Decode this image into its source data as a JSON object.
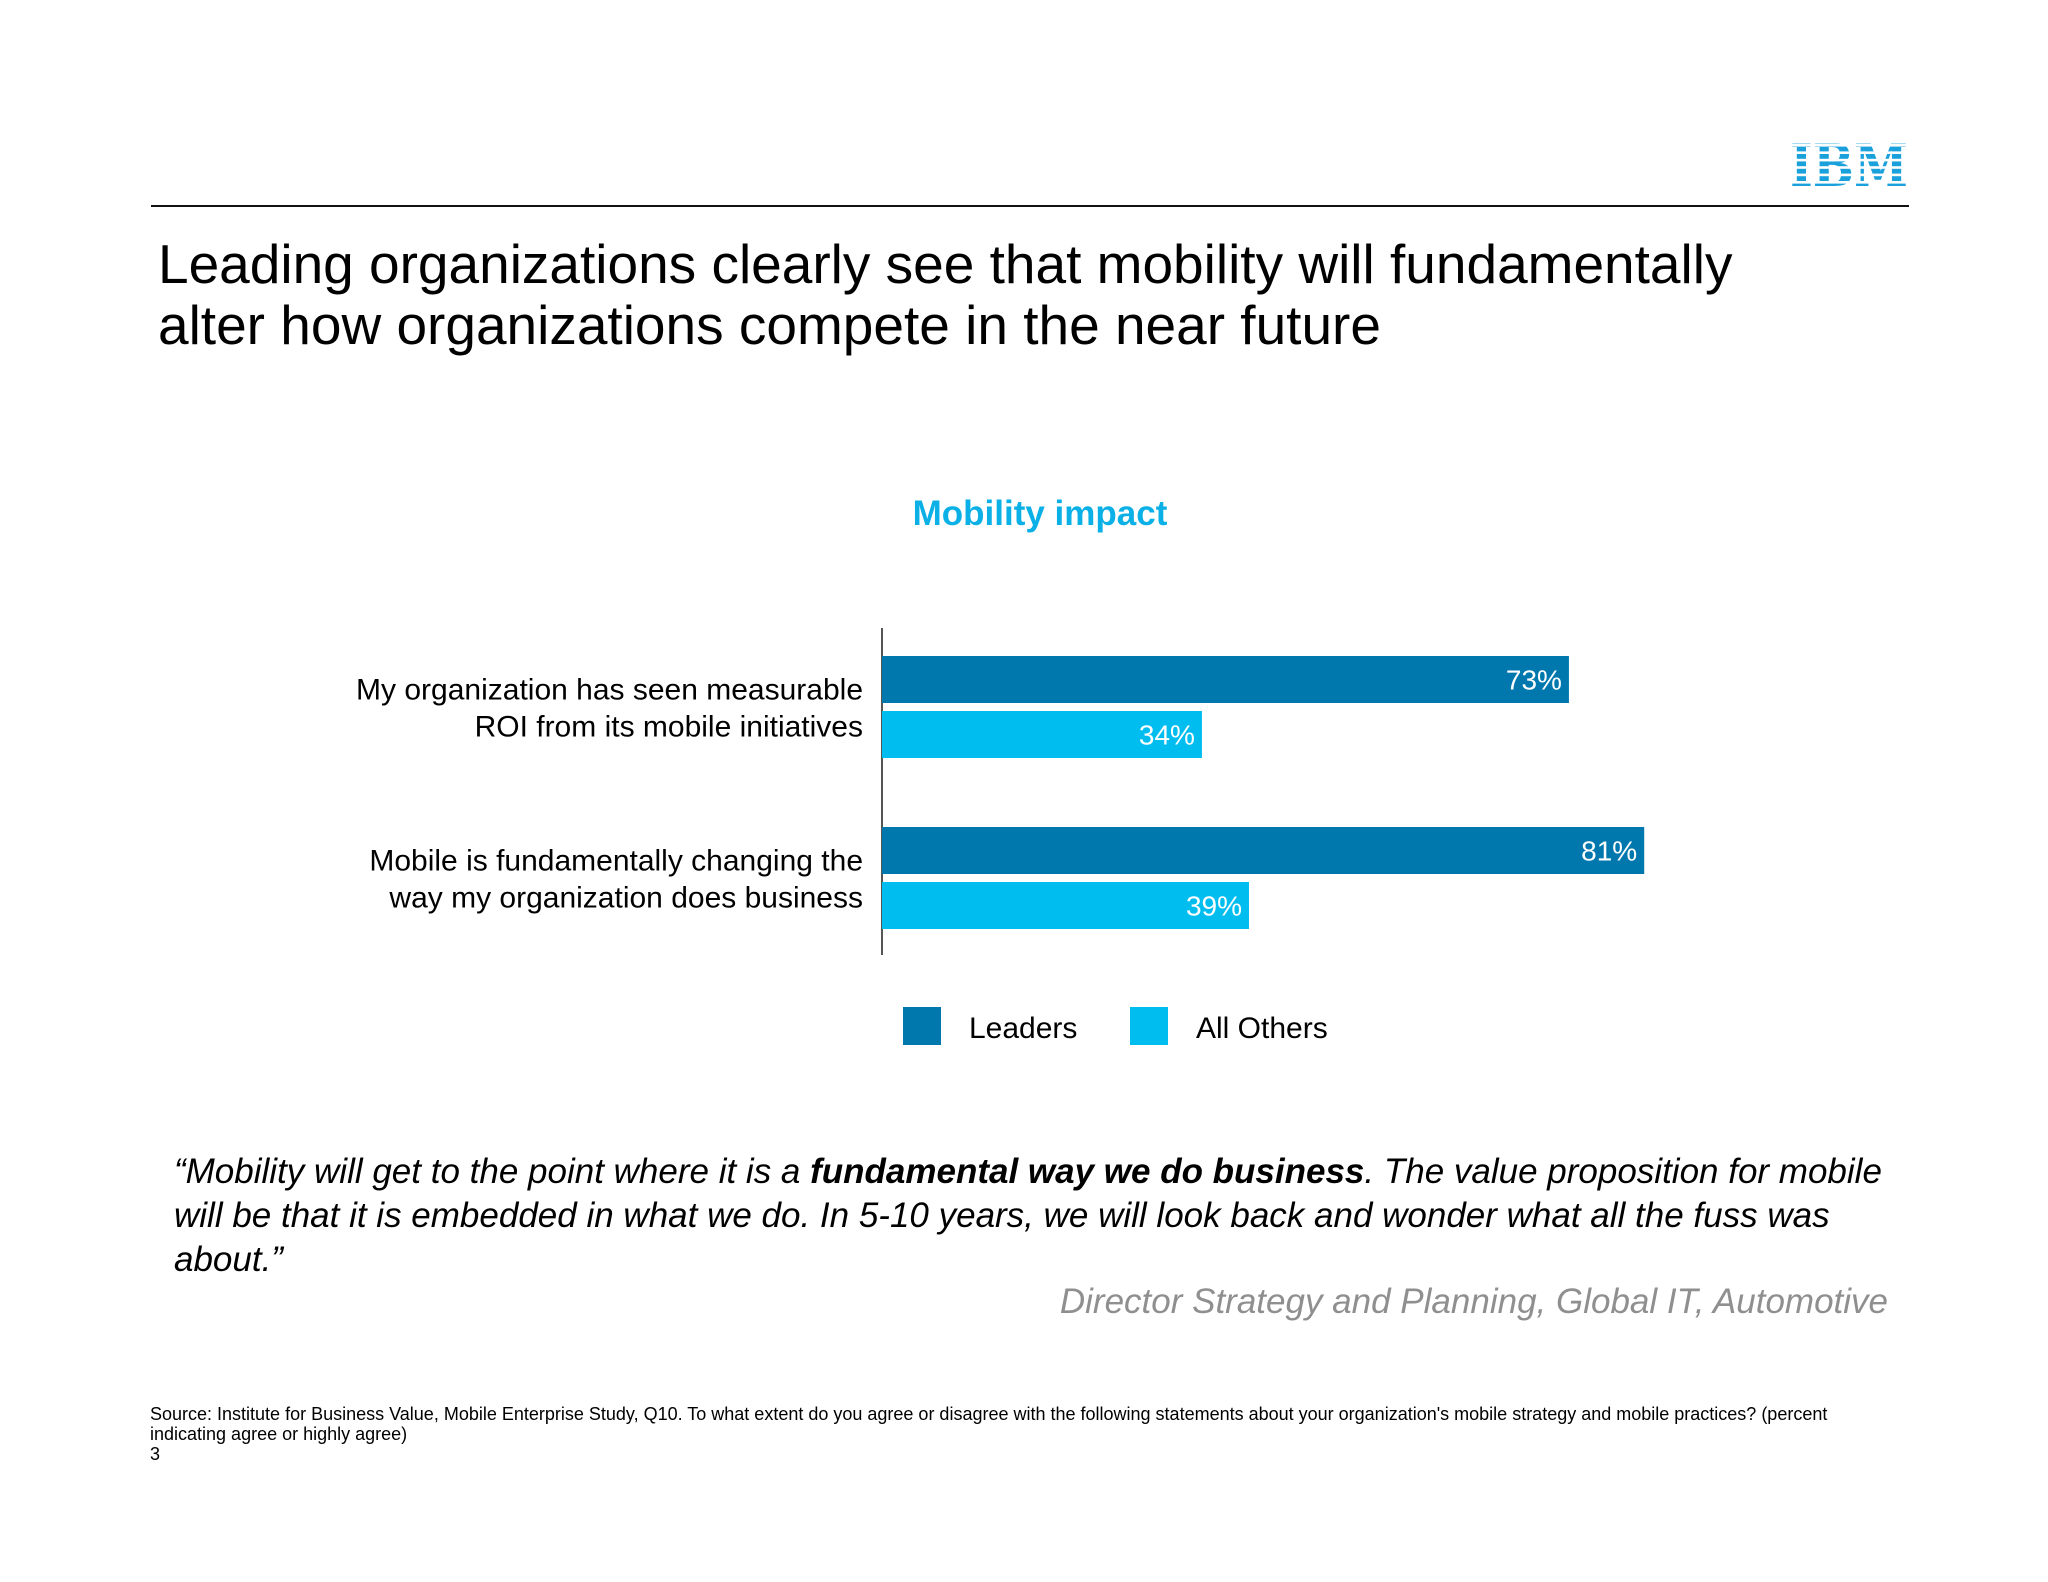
{
  "brand": {
    "logo_text": "IBM",
    "color": "#1aa1dc"
  },
  "slide": {
    "title_line1": "Leading organizations clearly see that mobility will fundamentally",
    "title_line2": "alter how organizations compete in the near future",
    "quote": {
      "part1": "“Mobility will get to the point where it is a ",
      "bold": "fundamental way we do business",
      "part2": ".  The value proposition for mobile will be that it is embedded in what we do.  In 5-10 years, we will look back and wonder what all the fuss was about.”"
    },
    "attribution": "Director Strategy and Planning, Global IT, Automotive",
    "source": "Source: Institute for Business Value, Mobile Enterprise Study, Q10. To what extent do you agree or disagree with the following statements about your organization's mobile strategy and mobile practices? (percent indicating agree or highly agree)",
    "page_number": "3"
  },
  "chart_data": {
    "type": "bar",
    "orientation": "horizontal",
    "title": "Mobility impact",
    "title_color": "#0ab0e6",
    "categories": [
      [
        "My organization has seen measurable",
        "ROI from its mobile initiatives"
      ],
      [
        "Mobile is fundamentally changing the",
        "way my organization does business"
      ]
    ],
    "series": [
      {
        "name": "Leaders",
        "values": [
          73,
          81
        ],
        "labels": [
          "73%",
          "81%"
        ],
        "color": "#0078ae"
      },
      {
        "name": "All Others",
        "values": [
          34,
          39
        ],
        "labels": [
          "34%",
          "39%"
        ],
        "color": "#00bdf0"
      }
    ],
    "xlim": [
      0,
      100
    ],
    "grid": false,
    "legend_position": "bottom"
  }
}
